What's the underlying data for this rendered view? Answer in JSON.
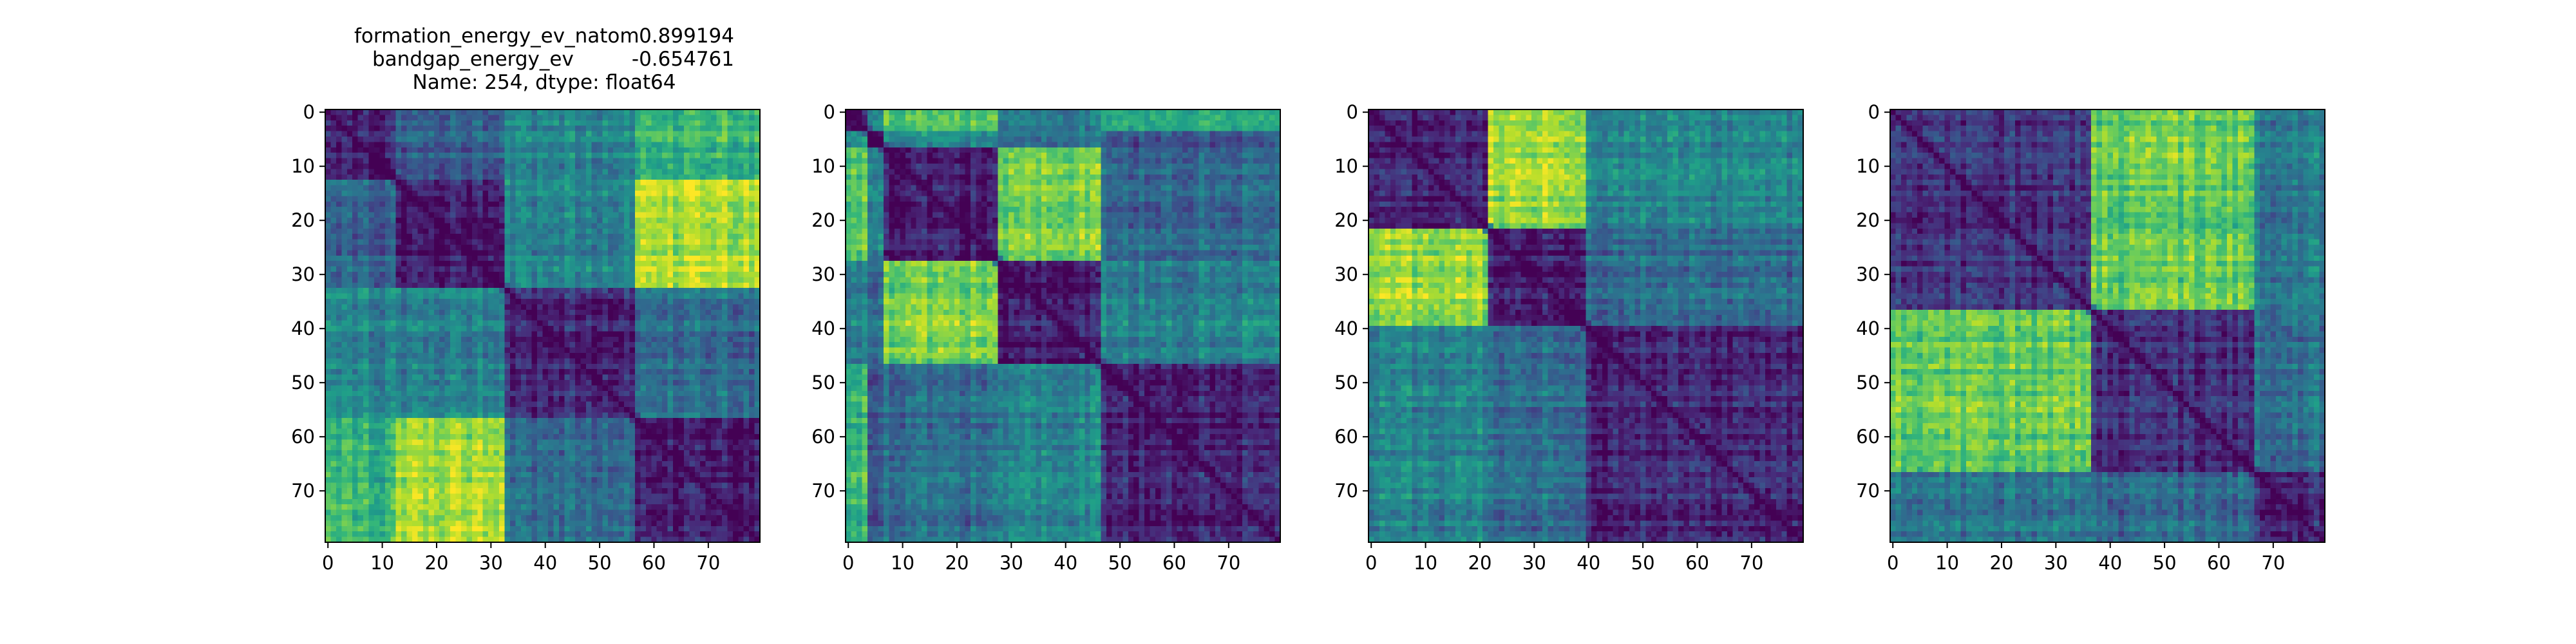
{
  "title": {
    "row1_key": "formation_energy_ev_natom",
    "row1_value": "0.899194",
    "row2_key": "bandgap_energy_ev",
    "row2_value": "-0.654761",
    "row3": "Name: 254, dtype: float64"
  },
  "chart_data": [
    {
      "type": "heatmap",
      "title": "formation_energy_ev_natom    0.899194\nbandgap_energy_ev          -0.654761\nName: 254, dtype: float64",
      "xlabel": "",
      "ylabel": "",
      "size": 80,
      "xlim": [
        0,
        79
      ],
      "ylim": [
        79,
        0
      ],
      "x_ticks": [
        0,
        10,
        20,
        30,
        40,
        50,
        60,
        70
      ],
      "y_ticks": [
        0,
        10,
        20,
        30,
        40,
        50,
        60,
        70
      ],
      "colormap": "viridis",
      "block_boundaries": [
        0,
        13,
        33,
        57,
        80
      ],
      "block_levels": [
        [
          0.08,
          0.3,
          0.45,
          0.65
        ],
        [
          0.3,
          0.08,
          0.45,
          0.88
        ],
        [
          0.45,
          0.45,
          0.1,
          0.35
        ],
        [
          0.65,
          0.88,
          0.35,
          0.08
        ]
      ]
    },
    {
      "type": "heatmap",
      "xlabel": "",
      "ylabel": "",
      "size": 80,
      "xlim": [
        0,
        79
      ],
      "ylim": [
        79,
        0
      ],
      "x_ticks": [
        0,
        10,
        20,
        30,
        40,
        50,
        60,
        70
      ],
      "y_ticks": [
        0,
        10,
        20,
        30,
        40,
        50,
        60,
        70
      ],
      "colormap": "viridis",
      "block_boundaries": [
        0,
        4,
        7,
        28,
        47,
        80
      ],
      "block_levels": [
        [
          0.1,
          0.55,
          0.75,
          0.45,
          0.65
        ],
        [
          0.55,
          0.1,
          0.5,
          0.4,
          0.3
        ],
        [
          0.75,
          0.5,
          0.08,
          0.8,
          0.35
        ],
        [
          0.45,
          0.4,
          0.8,
          0.08,
          0.45
        ],
        [
          0.65,
          0.3,
          0.35,
          0.45,
          0.1
        ]
      ]
    },
    {
      "type": "heatmap",
      "xlabel": "",
      "ylabel": "",
      "size": 80,
      "xlim": [
        0,
        79
      ],
      "ylim": [
        79,
        0
      ],
      "x_ticks": [
        0,
        10,
        20,
        30,
        40,
        50,
        60,
        70
      ],
      "y_ticks": [
        0,
        10,
        20,
        30,
        40,
        50,
        60,
        70
      ],
      "colormap": "viridis",
      "block_boundaries": [
        0,
        22,
        40,
        80
      ],
      "block_levels": [
        [
          0.1,
          0.85,
          0.45
        ],
        [
          0.85,
          0.08,
          0.35
        ],
        [
          0.45,
          0.35,
          0.1
        ]
      ]
    },
    {
      "type": "heatmap",
      "xlabel": "",
      "ylabel": "",
      "size": 80,
      "xlim": [
        0,
        79
      ],
      "ylim": [
        79,
        0
      ],
      "x_ticks": [
        0,
        10,
        20,
        30,
        40,
        50,
        60,
        70
      ],
      "y_ticks": [
        0,
        10,
        20,
        30,
        40,
        50,
        60,
        70
      ],
      "colormap": "viridis",
      "block_boundaries": [
        0,
        37,
        67,
        80
      ],
      "block_levels": [
        [
          0.15,
          0.75,
          0.4
        ],
        [
          0.75,
          0.12,
          0.35
        ],
        [
          0.4,
          0.35,
          0.12
        ]
      ]
    }
  ]
}
